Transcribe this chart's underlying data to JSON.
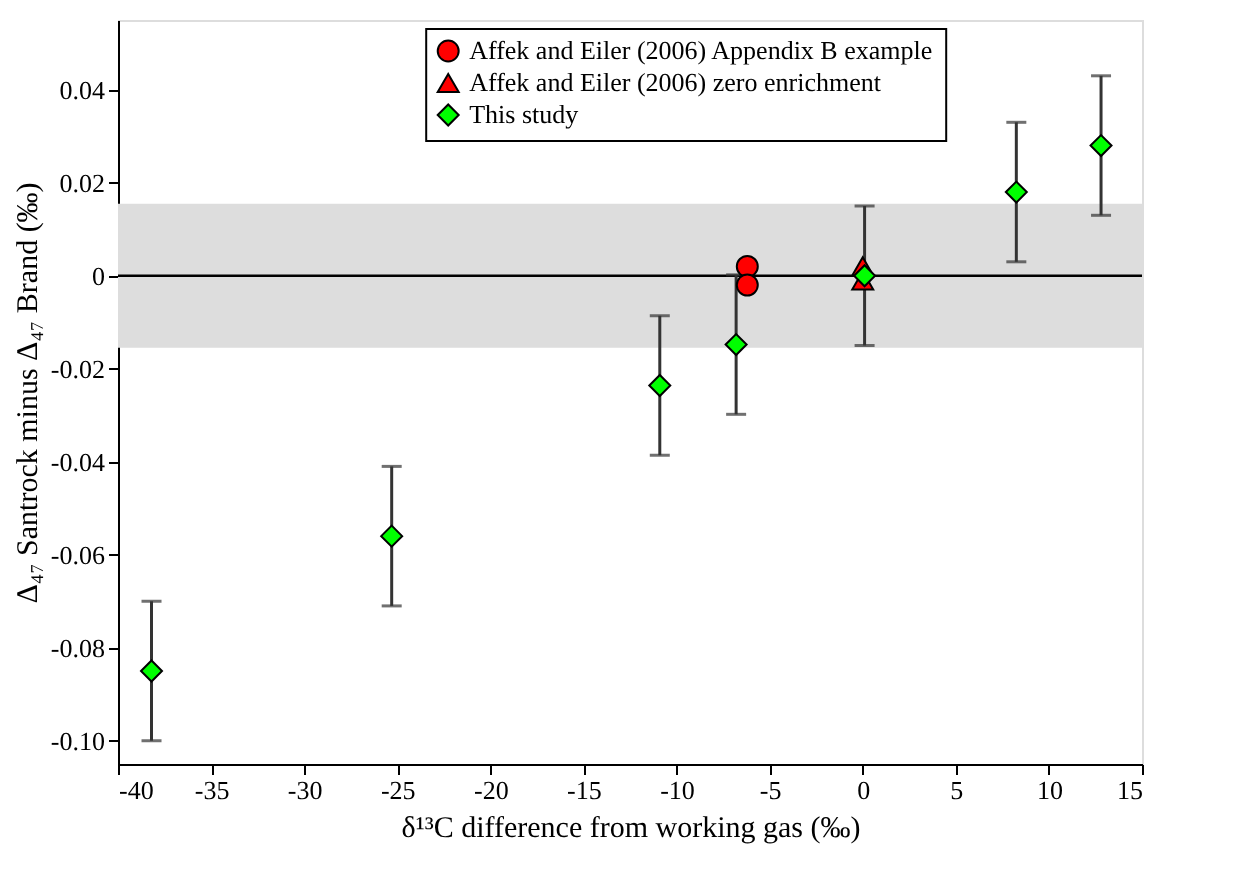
{
  "chart_data": {
    "type": "scatter",
    "xlabel": "δ¹³C difference from working gas (‰)",
    "ylabel": "Δ₄₇ Santrock minus Δ₄₇ Brand (‰)",
    "xlim": [
      -40,
      15
    ],
    "xticks": [
      -40,
      -35,
      -30,
      -25,
      -20,
      -15,
      -10,
      -5,
      0,
      5,
      10,
      15
    ],
    "ylim": [
      -0.105,
      0.055
    ],
    "yticks": [
      {
        "value": -0.1,
        "label": "-0.10"
      },
      -0.08,
      -0.06,
      -0.04,
      -0.02,
      0,
      0.02,
      0.04
    ],
    "series": [
      {
        "name": "Affek and Eiler (2006) Appendix B example",
        "color": "#ff0000",
        "marker": "circle",
        "x": [
          -6.2,
          -6.2
        ],
        "values": [
          0.002,
          -0.002
        ]
      },
      {
        "name": "Affek and Eiler (2006) zero enrichment",
        "color": "#ff0000",
        "marker": "triangle",
        "x": [
          0,
          0
        ],
        "values": [
          0.002,
          -0.001
        ]
      },
      {
        "name": "This study",
        "color": "#00ff00",
        "marker": "diamond",
        "x": [
          -38.2,
          -25.3,
          -10.9,
          -6.8,
          0.1,
          8.25,
          12.8
        ],
        "values": [
          -0.085,
          -0.056,
          -0.0236,
          -0.0148,
          0,
          0.018,
          0.028
        ],
        "errors": [
          0.015,
          0.015,
          0.015,
          0.015,
          0.015,
          0.015,
          0.015
        ]
      }
    ],
    "ref_lines": [
      {
        "axis": "y",
        "value": 0,
        "color": "#000000"
      }
    ],
    "bands": [
      {
        "axis": "y",
        "from": -0.0155,
        "to": 0.0155,
        "color": "#dddddd"
      }
    ],
    "grid": false,
    "legend": "top"
  }
}
